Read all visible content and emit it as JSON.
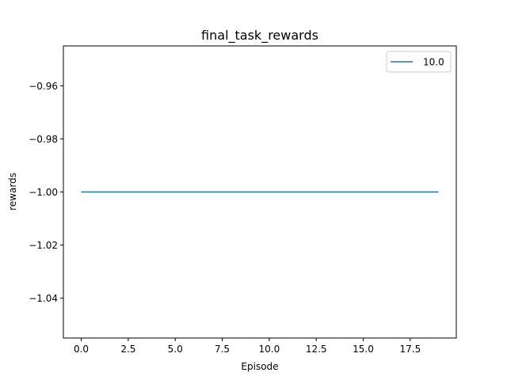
{
  "chart_data": {
    "type": "line",
    "title": "final_task_rewards",
    "xlabel": "Episode",
    "ylabel": "rewards",
    "xlim": [
      -0.95,
      19.95
    ],
    "ylim": [
      -1.055,
      -0.945
    ],
    "x_ticks": [
      0.0,
      2.5,
      5.0,
      7.5,
      10.0,
      12.5,
      15.0,
      17.5
    ],
    "x_tick_labels": [
      "0.0",
      "2.5",
      "5.0",
      "7.5",
      "10.0",
      "12.5",
      "15.0",
      "17.5"
    ],
    "y_ticks": [
      -0.96,
      -0.98,
      -1.0,
      -1.02,
      -1.04
    ],
    "y_tick_labels": [
      "−0.96",
      "−0.98",
      "−1.00",
      "−1.02",
      "−1.04"
    ],
    "grid": false,
    "legend_position": "top-right",
    "series": [
      {
        "name": "10.0",
        "color": "#1f77b4",
        "x": [
          0,
          1,
          2,
          3,
          4,
          5,
          6,
          7,
          8,
          9,
          10,
          11,
          12,
          13,
          14,
          15,
          16,
          17,
          18,
          19
        ],
        "y": [
          -1,
          -1,
          -1,
          -1,
          -1,
          -1,
          -1,
          -1,
          -1,
          -1,
          -1,
          -1,
          -1,
          -1,
          -1,
          -1,
          -1,
          -1,
          -1,
          -1
        ]
      }
    ]
  }
}
